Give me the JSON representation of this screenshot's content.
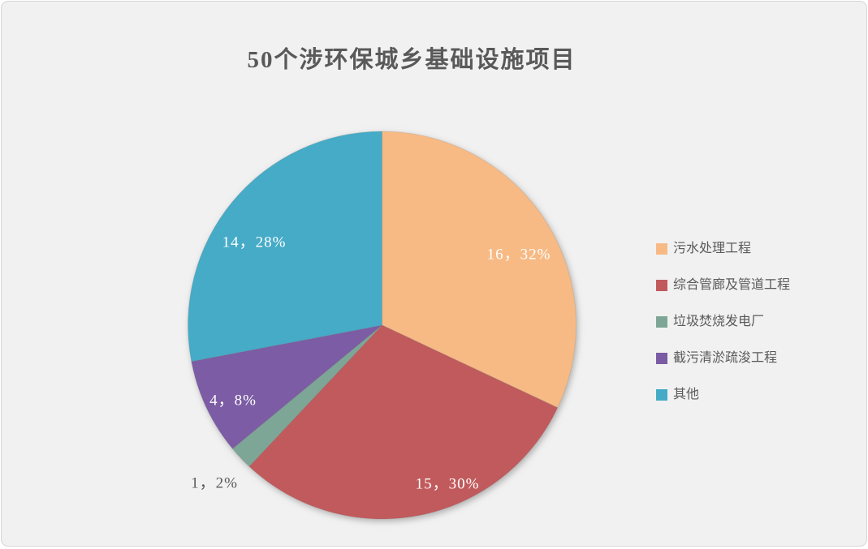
{
  "page": {
    "background_color": "#F1F1F1",
    "border_color": "#D6D6D6",
    "text_color": "#595959"
  },
  "chart_data": {
    "type": "pie",
    "title": "50个涉环保城乡基础设施项目",
    "total": 50,
    "start_angle_deg": 0,
    "direction": "clockwise",
    "legend_position": "right",
    "label_format": "值，百分比",
    "series": [
      {
        "name": "污水处理工程",
        "value": 16,
        "percent": "32%",
        "label": "16，32%",
        "color": "#F7BA84",
        "label_color": "#FFFFFF"
      },
      {
        "name": "综合管廊及管道工程",
        "value": 15,
        "percent": "30%",
        "label": "15，30%",
        "color": "#C15A5C",
        "label_color": "#FFFFFF"
      },
      {
        "name": "垃圾焚烧发电厂",
        "value": 1,
        "percent": "2%",
        "label": "1，2%",
        "color": "#7DA696",
        "label_color": "#595959"
      },
      {
        "name": "截污清淤疏浚工程",
        "value": 4,
        "percent": "8%",
        "label": "4，8%",
        "color": "#7B5CA4",
        "label_color": "#FFFFFF"
      },
      {
        "name": "其他",
        "value": 14,
        "percent": "28%",
        "label": "14，28%",
        "color": "#44ABC7",
        "label_color": "#FFFFFF"
      }
    ]
  }
}
